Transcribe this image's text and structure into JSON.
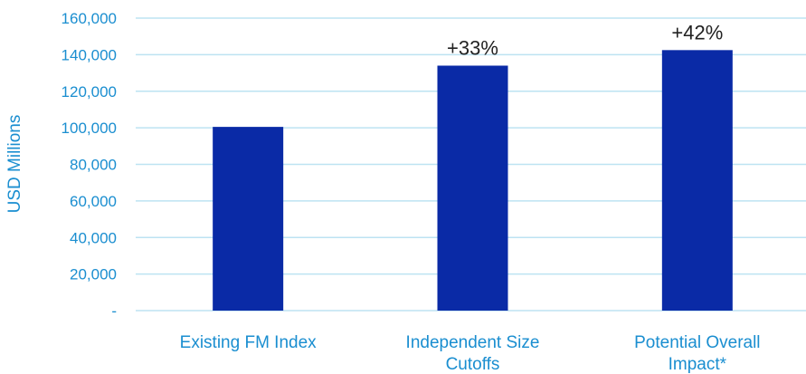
{
  "chart_data": {
    "type": "bar",
    "title": "",
    "xlabel": "",
    "ylabel": "USD Millions",
    "ylim": [
      0,
      160000
    ],
    "y_ticks": [
      0,
      20000,
      40000,
      60000,
      80000,
      100000,
      120000,
      140000,
      160000
    ],
    "y_tick_labels": [
      "-",
      "20,000",
      "40,000",
      "60,000",
      "80,000",
      "100,000",
      "120,000",
      "140,000",
      "160,000"
    ],
    "categories": [
      [
        "Existing FM Index"
      ],
      [
        "Independent Size",
        "Cutoffs"
      ],
      [
        "Potential Overall",
        "Impact*"
      ]
    ],
    "values": [
      100500,
      134000,
      142500
    ],
    "data_labels": [
      "",
      "+33%",
      "+42%"
    ],
    "grid": true,
    "colors": {
      "bar": "#0A2AA6",
      "grid": "#BDE3F2",
      "axis_text": "#1A8ED0",
      "data_label": "#222222"
    }
  }
}
